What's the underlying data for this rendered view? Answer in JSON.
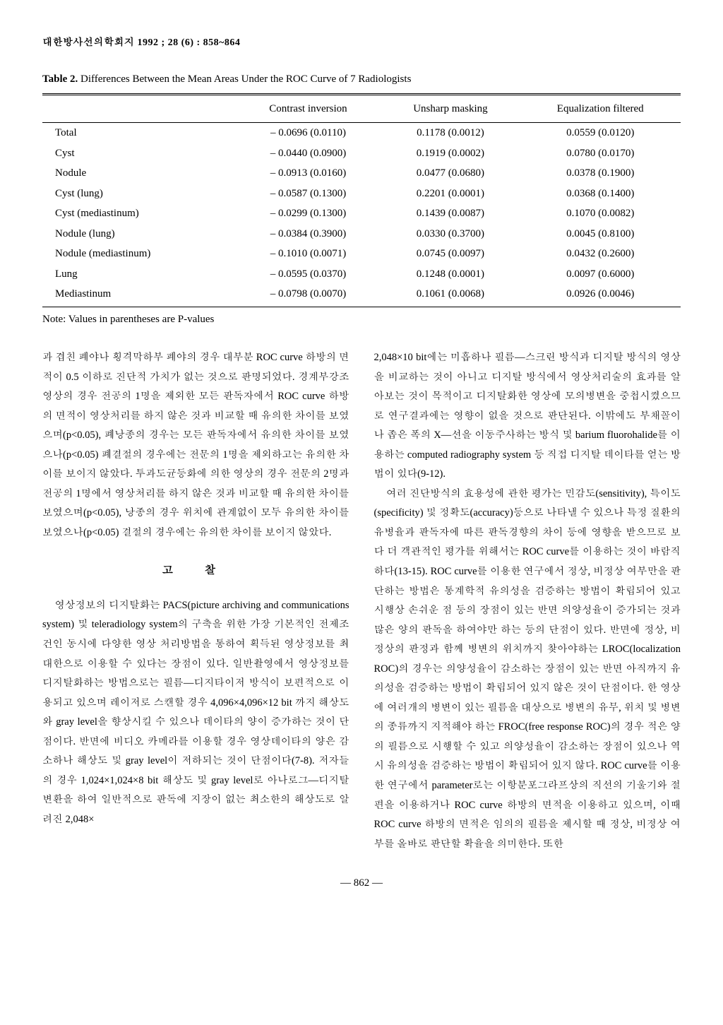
{
  "header": "대한방사선의학회지 1992 ; 28 (6) : 858~864",
  "table": {
    "caption_bold": "Table 2.",
    "caption_rest": " Differences Between the Mean Areas Under the ROC Curve of 7 Radiologists",
    "columns": [
      "",
      "Contrast inversion",
      "Unsharp masking",
      "Equalization filtered"
    ],
    "rows": [
      [
        "Total",
        "– 0.0696 (0.0110)",
        "0.1178 (0.0012)",
        "0.0559 (0.0120)"
      ],
      [
        "Cyst",
        "– 0.0440 (0.0900)",
        "0.1919 (0.0002)",
        "0.0780 (0.0170)"
      ],
      [
        "Nodule",
        "– 0.0913 (0.0160)",
        "0.0477 (0.0680)",
        "0.0378 (0.1900)"
      ],
      [
        "Cyst (lung)",
        "– 0.0587 (0.1300)",
        "0.2201 (0.0001)",
        "0.0368 (0.1400)"
      ],
      [
        "Cyst (mediastinum)",
        "– 0.0299 (0.1300)",
        "0.1439 (0.0087)",
        "0.1070 (0.0082)"
      ],
      [
        "Nodule (lung)",
        "– 0.0384 (0.3900)",
        "0.0330 (0.3700)",
        "0.0045 (0.8100)"
      ],
      [
        "Nodule (mediastinum)",
        "– 0.1010 (0.0071)",
        "0.0745 (0.0097)",
        "0.0432 (0.2600)"
      ],
      [
        "Lung",
        "– 0.0595 (0.0370)",
        "0.1248 (0.0001)",
        "0.0097 (0.6000)"
      ],
      [
        "Mediastinum",
        "– 0.0798 (0.0070)",
        "0.1061 (0.0068)",
        "0.0926 (0.0046)"
      ]
    ],
    "note": "Note: Values in parentheses are P-values"
  },
  "left_col": {
    "p1": "과 겹친 폐야나 횡격막하부 폐야의 경우 대부분 ROC curve 하방의 면적이 0.5 이하로 진단적 가치가 없는 것으로 판명되었다. 경계부강조 영상의 경우 전공의 1명을 제외한 모든 판독자에서 ROC curve 하방의 면적이 영상처리를 하지 않은 것과 비교할 때 유의한 차이를 보였으며(p<0.05), 폐낭종의 경우는 모든 판독자에서 유의한 차이를 보였으나(p<0.05) 폐결절의 경우에는 전문의 1명을 제외하고는 유의한 차이를 보이지 않았다. 투과도균등화에 의한 영상의 경우 전문의 2명과 전공의 1명에서 영상처리를 하지 않은 것과 비교할 때 유의한 차이를 보였으며(p<0.05), 낭종의 경우 위치에 관계없이 모두 유의한 차이를 보였으나(p<0.05) 결절의 경우에는 유의한 차이를 보이지 않았다.",
    "section": "고    찰",
    "p2": "영상정보의 디지탈화는 PACS(picture archiving and communications system) 및 teleradiology system의 구축을 위한 가장 기본적인 전제조건인 동시에 다양한 영상 처리방법을 통하여 획득된 영상정보를 최대한으로 이용할 수 있다는 장점이 있다. 일반촬영에서 영상정보를 디지탈화하는 방법으로는 필름—디지타이저 방식이 보편적으로 이용되고 있으며 레이저로 스캔할 경우 4,096×4,096×12 bit 까지 해상도와 gray level을 향상시킬 수 있으나 데이타의 양이 증가하는 것이 단점이다. 반면에 비디오 카메라를 이용할 경우 영상데이타의 양은 감소하나 해상도 및 gray level이 저하되는 것이 단점이다(7-8). 저자들의 경우 1,024×1,024×8 bit 해상도 및 gray level로 아나로그—디지탈 변환을 하여 일반적으로 판독에 지장이 없는 최소한의 해상도로 알려진 2,048×"
  },
  "right_col": {
    "p1": "2,048×10 bit에는 미흡하나 필름—스크린 방식과 디지탈 방식의 영상을 비교하는 것이 아니고 디지탈 방식에서 영상처리술의 효과를 알아보는 것이 목적이고 디지탈화한 영상에 모의병변을 중첩시켰으므로 연구결과에는 영향이 없을 것으로 판단된다. 이밖에도 부채꼴이나 좁은 폭의 X—선을 이동주사하는 방식 및 barium fluorohalide를 이용하는 computed radiography system 등 직접 디지탈 데이타를 얻는 방법이 있다(9-12).",
    "p2": "여러 진단방식의 효용성에 관한 평가는 민감도(sensitivity), 특이도(specificity) 및 정확도(accuracy)등으로 나타낼 수 있으나 특정 질환의 유병율과 판독자에 따른 판독경향의 차이 등에 영향을 받으므로 보다 더 객관적인 평가를 위해서는 ROC curve를 이용하는 것이 바람직하다(13-15). ROC curve를 이용한 연구에서 정상, 비정상 여부만을 판단하는 방법은 통계학적 유의성을 검증하는 방법이 확립되어 있고 시행상 손쉬운 점 등의 장점이 있는 반면 의양성율이 증가되는 것과 많은 양의 판독을 하여야만 하는 등의 단점이 있다. 반면에 정상, 비정상의 판정과 함께 병변의 위치까지 찾아야하는 LROC(localization ROC)의 경우는 의양성율이 감소하는 장점이 있는 반면 아직까지 유의성을 검증하는 방법이 확립되어 있지 않은 것이 단점이다. 한 영상에 여러개의 병변이 있는 필름을 대상으로 병변의 유무, 위치 및 병변의 종류까지 지적해야 하는 FROC(free response ROC)의 경우 적은 양의 필름으로 시행할 수 있고 의양성율이 감소하는 장점이 있으나 역시 유의성을 검증하는 방법이 확립되어 있지 않다. ROC curve를 이용한 연구에서 parameter로는 이항분포그라프상의 직선의 기울기와 절편을 이용하거나 ROC curve 하방의 면적을 이용하고 있으며, 이때 ROC curve 하방의 면적은 임의의 필름을 제시할 때 정상, 비정상 여부를 올바로 판단할 확율을 의미한다. 또한"
  },
  "page_number": "— 862 —"
}
